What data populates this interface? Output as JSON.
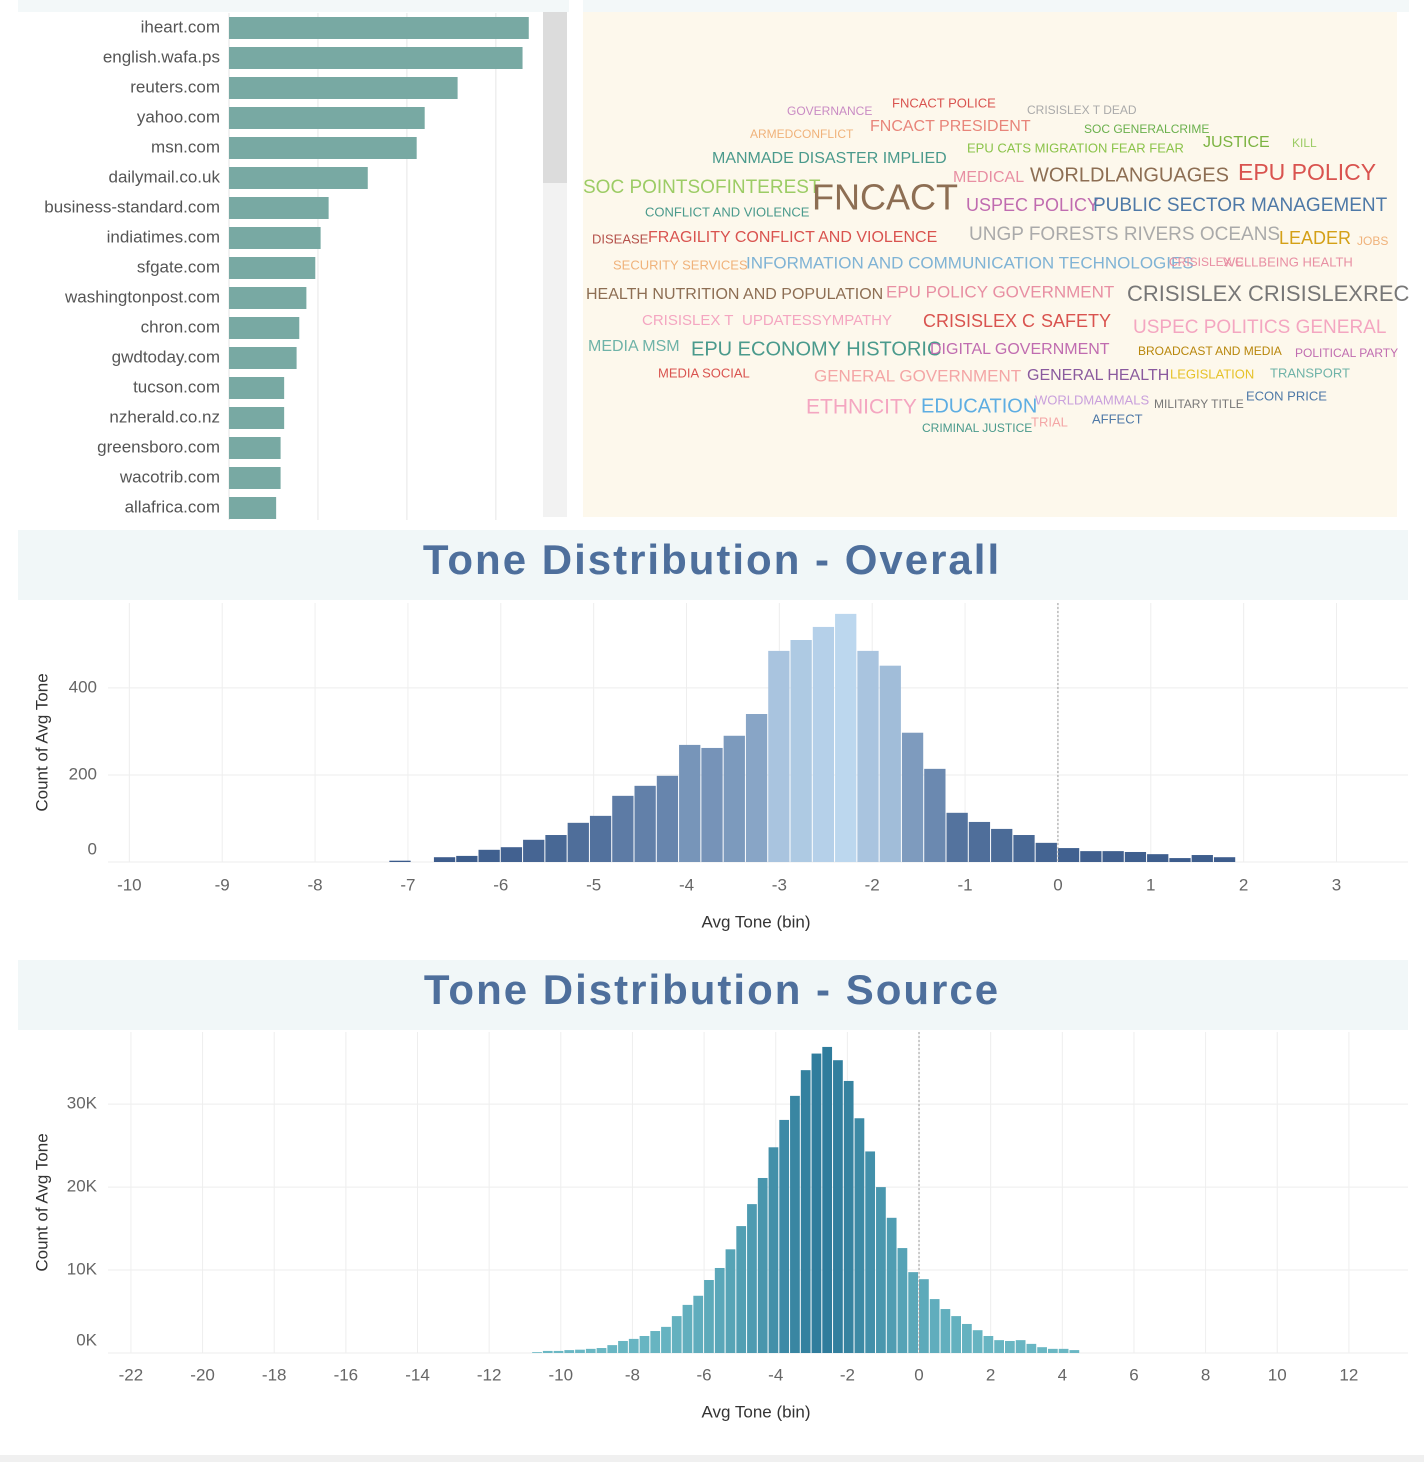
{
  "chart_data": [
    {
      "type": "bar",
      "orientation": "horizontal",
      "categories": [
        "iheart.com",
        "english.wafa.ps",
        "reuters.com",
        "yahoo.com",
        "msn.com",
        "dailymail.co.uk",
        "business-standard.com",
        "indiatimes.com",
        "sfgate.com",
        "washingtonpost.com",
        "chron.com",
        "gwdtoday.com",
        "tucson.com",
        "nzherald.co.nz",
        "greensboro.com",
        "wacotrib.com",
        "allafrica.com"
      ],
      "values": [
        3.37,
        3.3,
        2.57,
        2.2,
        2.11,
        1.56,
        1.12,
        1.03,
        0.97,
        0.87,
        0.79,
        0.76,
        0.62,
        0.62,
        0.58,
        0.58,
        0.53
      ],
      "color": "#78a9a3",
      "xlim": [
        0,
        3.53
      ],
      "xticks": [
        0,
        1,
        2,
        3
      ],
      "x_tick_labels": false,
      "grid": true
    },
    {
      "type": "wordcloud",
      "words": [
        "GOVERNANCE",
        "FNCACT POLICE",
        "CRISISLEX T DEAD",
        "ARMEDCONFLICT",
        "FNCACT PRESIDENT",
        "SOC GENERALCRIME",
        "JUSTICE",
        "KILL",
        "MANMADE DISASTER IMPLIED",
        "EPU CATS MIGRATION FEAR FEAR",
        "SOC POINTSOFINTEREST",
        "FNCACT",
        "MEDICAL",
        "WORLDLANGUAGES",
        "EPU POLICY",
        "CONFLICT AND VIOLENCE",
        "USPEC POLICY",
        "PUBLIC SECTOR MANAGEMENT",
        "DISEASE",
        "FRAGILITY CONFLICT AND VIOLENCE",
        "UNGP FORESTS RIVERS OCEANS",
        "LEADER",
        "JOBS",
        "SECURITY SERVICES",
        "INFORMATION AND COMMUNICATION TECHNOLOGIES",
        "CRISISLEX C",
        "WELLBEING HEALTH",
        "HEALTH NUTRITION AND POPULATION",
        "EPU POLICY GOVERNMENT",
        "CRISISLEX CRISISLEXREC",
        "CRISISLEX T",
        "UPDATESSYMPATHY",
        "CRISISLEX C",
        "SAFETY",
        "USPEC POLITICS GENERAL",
        "MEDIA MSM",
        "EPU ECONOMY HISTORIC",
        "DIGITAL GOVERNMENT",
        "BROADCAST AND MEDIA",
        "POLITICAL PARTY",
        "MEDIA SOCIAL",
        "GENERAL GOVERNMENT",
        "GENERAL HEALTH",
        "LEGISLATION",
        "TRANSPORT",
        "ETHNICITY",
        "EDUCATION",
        "WORLDMAMMALS",
        "MILITARY TITLE",
        "ECON PRICE",
        "CRIMINAL JUSTICE",
        "TRIAL",
        "AFFECT"
      ],
      "colors": [
        "#c98bc4",
        "#d9534f",
        "#aaaaaa",
        "#f0b27a",
        "#e8857a",
        "#6ab04c",
        "#7cb342",
        "#9ccc65",
        "#4a9a8c",
        "#8bc34a",
        "#9ccc65",
        "#8d6e53",
        "#e88fa3",
        "#8d6e53",
        "#d9534f",
        "#4a9a8c",
        "#c06cb0",
        "#4e79a7",
        "#b5524b",
        "#d9534f",
        "#aaaaaa",
        "#d4a017",
        "#f0b27a",
        "#f0b27a",
        "#7fb3d5",
        "#e88fa3",
        "#e88fa3",
        "#8d6e53",
        "#e88fa3",
        "#777777",
        "#f4a6c1",
        "#f4a6c1",
        "#d9534f",
        "#d9534f",
        "#f4a6c1",
        "#6fb3a8",
        "#4a9a8c",
        "#c06cb0",
        "#b8860b",
        "#c06cb0",
        "#d9534f",
        "#f4a6a6",
        "#8a5a9e",
        "#e6c229",
        "#6fb3a8",
        "#f4a6c1",
        "#5dade2",
        "#c9a0dc",
        "#777777",
        "#4e79a7",
        "#4a9a8c",
        "#f4a6a6",
        "#4e79a7"
      ],
      "background": "#fdf8ec"
    },
    {
      "type": "histogram",
      "title": "Tone Distribution - Overall",
      "x_label": "Avg Tone (bin)",
      "y_label": "Count of Avg Tone",
      "bins": [
        -7.2,
        -6.96,
        -6.72,
        -6.48,
        -6.24,
        -6.0,
        -5.76,
        -5.52,
        -5.28,
        -5.04,
        -4.8,
        -4.56,
        -4.32,
        -4.08,
        -3.84,
        -3.6,
        -3.36,
        -3.12,
        -2.88,
        -2.64,
        -2.4,
        -2.16,
        -1.92,
        -1.68,
        -1.44,
        -1.2,
        -0.96,
        -0.72,
        -0.48,
        -0.24,
        0.0,
        0.24,
        0.48,
        0.72,
        0.96,
        1.2,
        1.44,
        1.68,
        1.92
      ],
      "values": [
        3,
        0,
        11,
        14,
        28,
        34,
        51,
        62,
        90,
        106,
        152,
        175,
        198,
        269,
        262,
        290,
        340,
        485,
        510,
        540,
        570,
        485,
        451,
        297,
        214,
        113,
        92,
        76,
        62,
        44,
        32,
        25,
        25,
        23,
        18,
        9,
        16,
        11
      ],
      "color_scale": [
        "#3a5a8a",
        "#bcd7ee"
      ],
      "xlim": [
        -10.23,
        3.77
      ],
      "xticks": [
        -10,
        -9,
        -8,
        -7,
        -6,
        -5,
        -4,
        -3,
        -2,
        -1,
        0,
        1,
        2,
        3
      ],
      "ylim": [
        0,
        595
      ],
      "yticks": [
        0,
        200,
        400
      ],
      "grid": true,
      "reference_line": 0
    },
    {
      "type": "histogram",
      "title": "Tone Distribution - Source",
      "x_label": "Avg Tone (bin)",
      "y_label": "Count of Avg Tone",
      "bins": [
        -10.8,
        -10.5,
        -10.2,
        -9.9,
        -9.6,
        -9.3,
        -9.0,
        -8.7,
        -8.4,
        -8.1,
        -7.8,
        -7.5,
        -7.2,
        -6.9,
        -6.6,
        -6.3,
        -6.0,
        -5.7,
        -5.4,
        -5.1,
        -4.8,
        -4.5,
        -4.2,
        -3.9,
        -3.6,
        -3.3,
        -3.0,
        -2.7,
        -2.4,
        -2.1,
        -1.8,
        -1.5,
        -1.2,
        -0.9,
        -0.6,
        -0.3,
        0,
        0.3,
        0.6,
        0.9,
        1.2,
        1.5,
        1.8,
        2.1,
        2.4,
        2.7,
        3.0,
        3.3,
        3.6,
        3.9,
        4.2,
        4.5
      ],
      "values": [
        100,
        250,
        250,
        350,
        400,
        500,
        600,
        950,
        1450,
        1700,
        2050,
        2650,
        3150,
        4450,
        5800,
        6900,
        8800,
        10250,
        12500,
        15300,
        17950,
        21100,
        24800,
        28100,
        31000,
        34100,
        36100,
        36900,
        35300,
        32800,
        28300,
        24300,
        20000,
        16300,
        12650,
        9750,
        8900,
        6500,
        5300,
        4450,
        3500,
        2750,
        2050,
        1550,
        1450,
        1550,
        1100,
        700,
        500,
        500,
        350
      ],
      "color_scale": [
        "#6bb8c4",
        "#2f7c9c"
      ],
      "xlim": [
        -22.64,
        13.65
      ],
      "xticks": [
        -22,
        -20,
        -18,
        -16,
        -14,
        -12,
        -10,
        -8,
        -6,
        -4,
        -2,
        0,
        2,
        4,
        6,
        8,
        10,
        12
      ],
      "ylim": [
        0,
        38700
      ],
      "yticks": [
        {
          "value": 0,
          "label": "0K"
        },
        {
          "value": 10000,
          "label": "10K"
        },
        {
          "value": 20000,
          "label": "20K"
        },
        {
          "value": 30000,
          "label": "30K"
        }
      ],
      "grid": true,
      "reference_line": 0
    }
  ]
}
